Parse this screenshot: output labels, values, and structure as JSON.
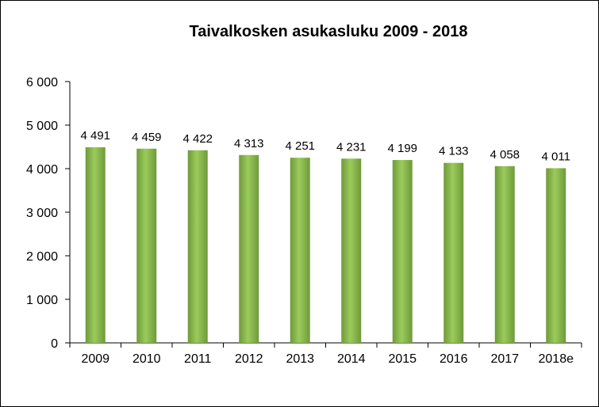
{
  "chart_data": {
    "type": "bar",
    "title": "Taivalkosken asukasluku 2009 - 2018",
    "categories": [
      "2009",
      "2010",
      "2011",
      "2012",
      "2013",
      "2014",
      "2015",
      "2016",
      "2017",
      "2018e"
    ],
    "values": [
      4491,
      4459,
      4422,
      4313,
      4251,
      4231,
      4199,
      4133,
      4058,
      4011
    ],
    "value_labels": [
      "4 491",
      "4 459",
      "4 422",
      "4 313",
      "4 251",
      "4 231",
      "4 199",
      "4 133",
      "4 058",
      "4 011"
    ],
    "yticks": [
      0,
      1000,
      2000,
      3000,
      4000,
      5000,
      6000
    ],
    "ytick_labels": [
      "0",
      "1 000",
      "2 000",
      "3 000",
      "4 000",
      "5 000",
      "6 000"
    ],
    "ylim": [
      0,
      6000
    ],
    "xlabel": "",
    "ylabel": "",
    "grid": false,
    "legend": false,
    "bar_color": "#9BCB5B",
    "bar_color_dark": "#6E9A3A"
  }
}
